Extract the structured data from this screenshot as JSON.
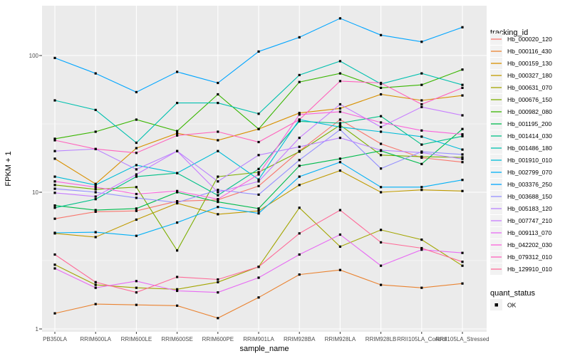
{
  "figure": {
    "panel_bg": "#EBEBEB",
    "grid_color": "#FFFFFF",
    "tick_color": "#333333",
    "axis_text_color": "#4D4D4D",
    "legend_key_bg": "#F2F2F2",
    "point_color": "#000000",
    "y_axis": {
      "title": "FPKM + 1",
      "tick_labels": [
        "100",
        "10",
        "1"
      ],
      "tick_values": [
        100,
        10,
        1
      ]
    },
    "x_axis": {
      "title": "sample_name"
    },
    "legend": {
      "tracking_title": "tracking_id",
      "quant_title": "quant_status",
      "quant_ok_label": "OK"
    }
  },
  "chart_data": {
    "type": "line",
    "title": "",
    "xlabel": "sample_name",
    "ylabel": "FPKM + 1",
    "y_scale": "log10",
    "ylim": [
      1,
      240
    ],
    "y_major_gridlines": [
      1,
      10,
      100
    ],
    "y_minor_gridlines": [
      3.1623,
      31.623
    ],
    "grid": true,
    "legend_position": "right",
    "point_shape": "filled-square",
    "quant_status": "OK",
    "categories": [
      "PB350LA",
      "RRIM600LA",
      "RRIM600LE",
      "RRIM600SE",
      "RRIM600PE",
      "RRIM901LA",
      "RRIM928BA",
      "RRIM928LA",
      "RRIM928LB",
      "RRII105LA_Control",
      "RRII105LA_Stressed"
    ],
    "series": [
      {
        "name": "Hb_000020_120",
        "color": "#F8766D",
        "values": [
          6.4,
          7.2,
          7.3,
          8.6,
          8.8,
          11.1,
          20,
          34,
          22.6,
          17.9,
          16.6
        ]
      },
      {
        "name": "Hb_000116_430",
        "color": "#EA8331",
        "values": [
          1.3,
          1.52,
          1.5,
          1.48,
          1.2,
          1.7,
          2.5,
          2.7,
          2.1,
          2.0,
          2.15
        ]
      },
      {
        "name": "Hb_000159_130",
        "color": "#D89000",
        "values": [
          17.6,
          11.5,
          21,
          27,
          24,
          29,
          38,
          41,
          52,
          47,
          51
        ]
      },
      {
        "name": "Hb_000327_180",
        "color": "#C09B00",
        "values": [
          5.0,
          4.7,
          6.3,
          8.3,
          6.9,
          7.3,
          11.3,
          14.4,
          10.0,
          10.4,
          10.2
        ]
      },
      {
        "name": "Hb_000631_070",
        "color": "#A3A500",
        "values": [
          2.95,
          2.1,
          2.0,
          1.95,
          2.2,
          2.85,
          7.7,
          4.0,
          5.3,
          4.5,
          2.9
        ]
      },
      {
        "name": "Hb_000676_150",
        "color": "#7CAE00",
        "values": [
          11.3,
          10.5,
          10.9,
          3.75,
          13,
          14,
          19.8,
          31,
          18.7,
          18.2,
          18
        ]
      },
      {
        "name": "Hb_000982_080",
        "color": "#39B600",
        "values": [
          24.6,
          27.7,
          34,
          28,
          52,
          29,
          64,
          74,
          58,
          61,
          79
        ]
      },
      {
        "name": "Hb_001195_200",
        "color": "#00BB4E",
        "values": [
          8.0,
          7.4,
          7.6,
          10.0,
          8.5,
          7.6,
          15.6,
          17.6,
          20.1,
          16.1,
          29
        ]
      },
      {
        "name": "Hb_001414_030",
        "color": "#00C087",
        "values": [
          7.7,
          8.9,
          13.0,
          13.8,
          9.5,
          14.8,
          33,
          32,
          36,
          22.3,
          25.7
        ]
      },
      {
        "name": "Hb_001486_180",
        "color": "#00C0AF",
        "values": [
          47,
          40,
          23,
          45,
          45,
          37.5,
          72,
          91,
          62,
          74,
          61
        ]
      },
      {
        "name": "Hb_001910_010",
        "color": "#00BCD8",
        "values": [
          13.0,
          11.3,
          15.8,
          13.8,
          20,
          12.4,
          34,
          30,
          27.7,
          25.5,
          20.5
        ]
      },
      {
        "name": "Hb_002799_070",
        "color": "#00B0F6",
        "values": [
          5.05,
          5.1,
          4.8,
          6.0,
          7.8,
          7.0,
          13.0,
          16.6,
          10.9,
          10.9,
          12.3
        ]
      },
      {
        "name": "Hb_003376_250",
        "color": "#00A5FF",
        "values": [
          96,
          74,
          54,
          76,
          63,
          107,
          136,
          187,
          141,
          126,
          161
        ]
      },
      {
        "name": "Hb_003688_150",
        "color": "#9590FF",
        "values": [
          10.6,
          10.0,
          9.1,
          8.4,
          10.4,
          9.6,
          17.2,
          28.7,
          14.9,
          19.8,
          18.9
        ]
      },
      {
        "name": "Hb_005183_120",
        "color": "#B983FF",
        "values": [
          20,
          20.7,
          14.7,
          20.0,
          12.0,
          18.7,
          21.5,
          25.0,
          20.3,
          19.5,
          17.5
        ]
      },
      {
        "name": "Hb_007747_210",
        "color": "#C77CFF",
        "values": [
          9.9,
          9.3,
          13.5,
          20.0,
          10.0,
          12.0,
          25.0,
          44.0,
          30.0,
          42.0,
          36.5
        ]
      },
      {
        "name": "Hb_009113_070",
        "color": "#E76BF3",
        "values": [
          2.77,
          2.0,
          2.24,
          1.9,
          1.85,
          2.37,
          3.5,
          4.9,
          2.9,
          3.8,
          3.6
        ]
      },
      {
        "name": "Hb_042202_030",
        "color": "#FA62DB",
        "values": [
          12.0,
          10.9,
          9.7,
          10.2,
          8.9,
          13.5,
          37.0,
          38.8,
          32.4,
          28.3,
          26.5
        ]
      },
      {
        "name": "Hb_079312_010",
        "color": "#FF62BC",
        "values": [
          24.0,
          20.7,
          19.4,
          26.0,
          27.7,
          23.3,
          34.0,
          65.0,
          63.0,
          44.0,
          58.0
        ]
      },
      {
        "name": "Hb_129910_010",
        "color": "#FF6A98",
        "values": [
          3.5,
          2.2,
          1.85,
          2.4,
          2.3,
          2.85,
          5.0,
          7.4,
          4.3,
          3.9,
          3.1
        ]
      }
    ]
  }
}
